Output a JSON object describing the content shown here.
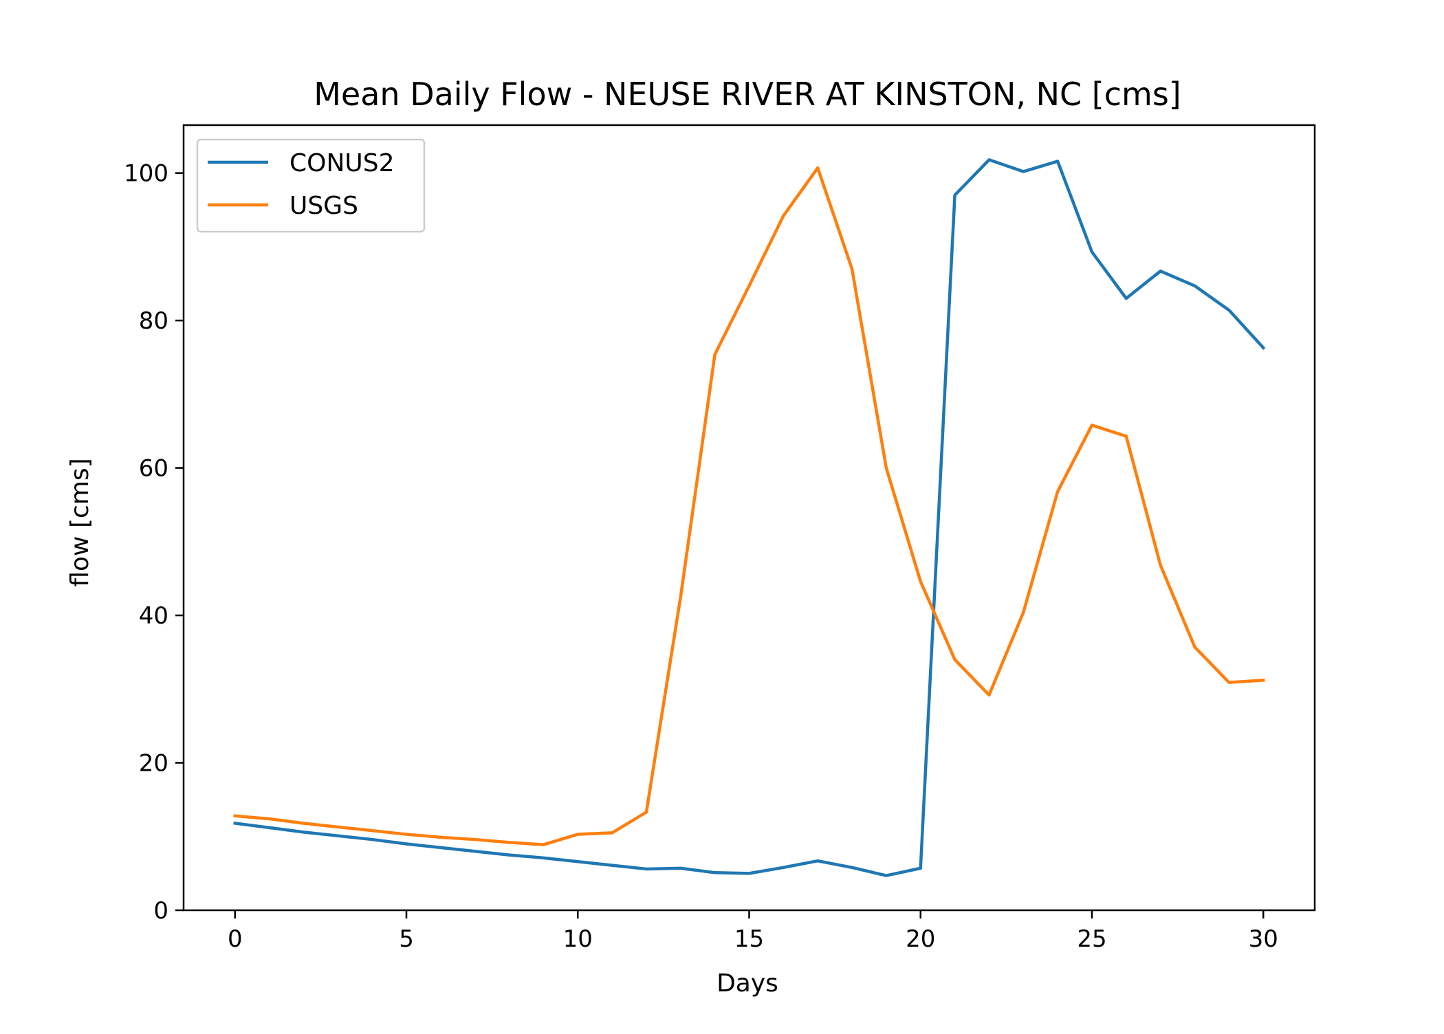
{
  "chart_data": {
    "type": "line",
    "title": "Mean Daily Flow - NEUSE RIVER AT KINSTON, NC [cms]",
    "xlabel": "Days",
    "ylabel": "flow [cms]",
    "xlim": [
      -1.5,
      31.5
    ],
    "ylim": [
      0,
      106.5
    ],
    "xticks": [
      0,
      5,
      10,
      15,
      20,
      25,
      30
    ],
    "yticks": [
      0,
      20,
      40,
      60,
      80,
      100
    ],
    "grid": false,
    "legend_position": "upper-left",
    "x": [
      0,
      1,
      2,
      3,
      4,
      5,
      6,
      7,
      8,
      9,
      10,
      11,
      12,
      13,
      14,
      15,
      16,
      17,
      18,
      19,
      20,
      21,
      22,
      23,
      24,
      25,
      26,
      27,
      28,
      29,
      30
    ],
    "series": [
      {
        "name": "CONUS2",
        "color": "#1f77b4",
        "values": [
          11.8,
          11.2,
          10.6,
          10.1,
          9.6,
          9.0,
          8.5,
          8.0,
          7.5,
          7.1,
          6.6,
          6.1,
          5.6,
          5.7,
          5.1,
          5.0,
          5.8,
          6.7,
          5.8,
          4.7,
          5.7,
          97.0,
          101.8,
          100.2,
          101.6,
          89.3,
          83.0,
          86.7,
          84.7,
          81.4,
          76.3
        ]
      },
      {
        "name": "USGS",
        "color": "#ff7f0e",
        "values": [
          12.8,
          12.4,
          11.8,
          11.3,
          10.8,
          10.3,
          9.9,
          9.6,
          9.2,
          8.9,
          10.3,
          10.5,
          13.3,
          42.5,
          75.4,
          84.7,
          94.2,
          100.7,
          87.0,
          60.0,
          44.6,
          34.0,
          29.2,
          40.4,
          56.8,
          65.8,
          64.3,
          46.8,
          35.7,
          30.9,
          31.2
        ]
      }
    ]
  }
}
